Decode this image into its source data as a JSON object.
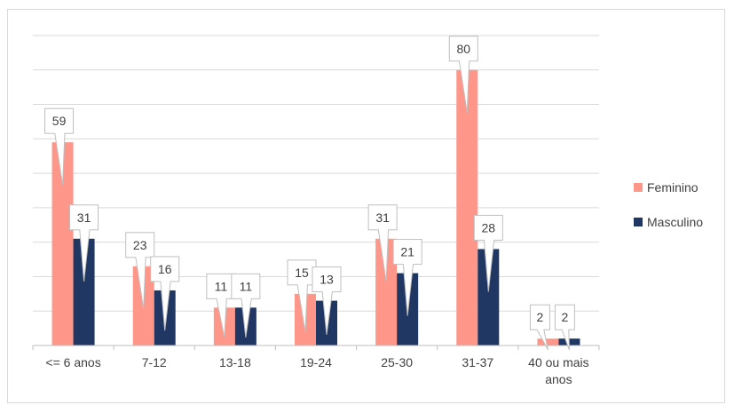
{
  "chart_data": {
    "type": "bar",
    "categories": [
      "<= 6 anos",
      "7-12",
      "13-18",
      "19-24",
      "25-30",
      "31-37",
      "40 ou mais anos"
    ],
    "series": [
      {
        "name": "Feminino",
        "values": [
          59,
          23,
          11,
          15,
          31,
          80,
          2
        ],
        "color": "#ff968a"
      },
      {
        "name": "Masculino",
        "values": [
          31,
          16,
          11,
          13,
          21,
          28,
          2
        ],
        "color": "#203764"
      }
    ],
    "ylim": [
      0,
      90
    ],
    "grid": true,
    "legend": "right",
    "data_labels": "callout"
  }
}
